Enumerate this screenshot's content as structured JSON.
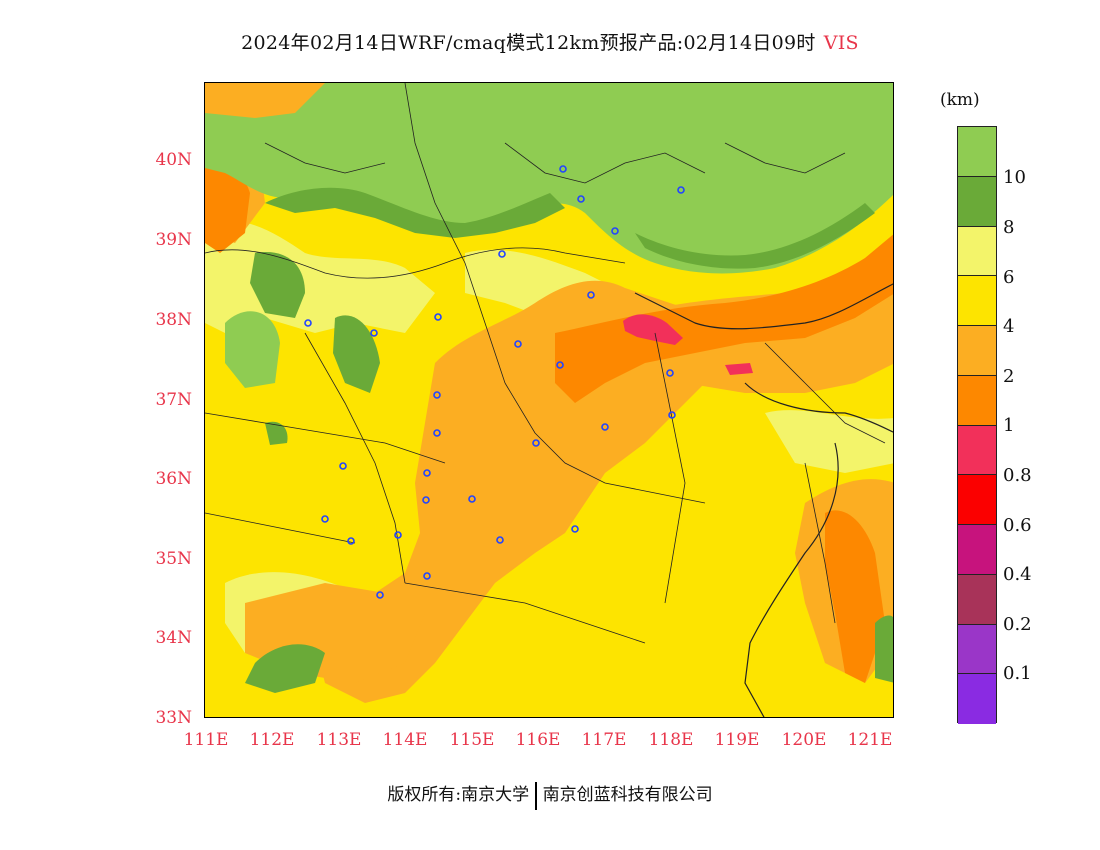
{
  "title": {
    "main": "2024年02月14日WRF/cmaq模式12km预报产品:02月14日09时",
    "variable": "VIS"
  },
  "map": {
    "lat_labels": [
      "40N",
      "39N",
      "38N",
      "37N",
      "36N",
      "35N",
      "34N",
      "33N"
    ],
    "lon_labels": [
      "111E",
      "112E",
      "113E",
      "114E",
      "115E",
      "116E",
      "117E",
      "118E",
      "119E",
      "120E",
      "121E"
    ],
    "extent": {
      "lon_min": 111,
      "lon_max": 121.4,
      "lat_min": 33,
      "lat_max": 41
    }
  },
  "legend": {
    "unit": "(km)",
    "labels": [
      "10",
      "8",
      "6",
      "4",
      "2",
      "1",
      "0.8",
      "0.6",
      "0.4",
      "0.2",
      "0.1"
    ],
    "colors": [
      "#8fcc52",
      "#6aaa38",
      "#f3f46a",
      "#fde400",
      "#fcae22",
      "#fd8800",
      "#f2305a",
      "#fb0000",
      "#c7137d",
      "#a83359",
      "#9a36c8",
      "#8a2be2"
    ]
  },
  "footer": {
    "left": "版权所有:南京大学",
    "right": "南京创蓝科技有限公司"
  }
}
